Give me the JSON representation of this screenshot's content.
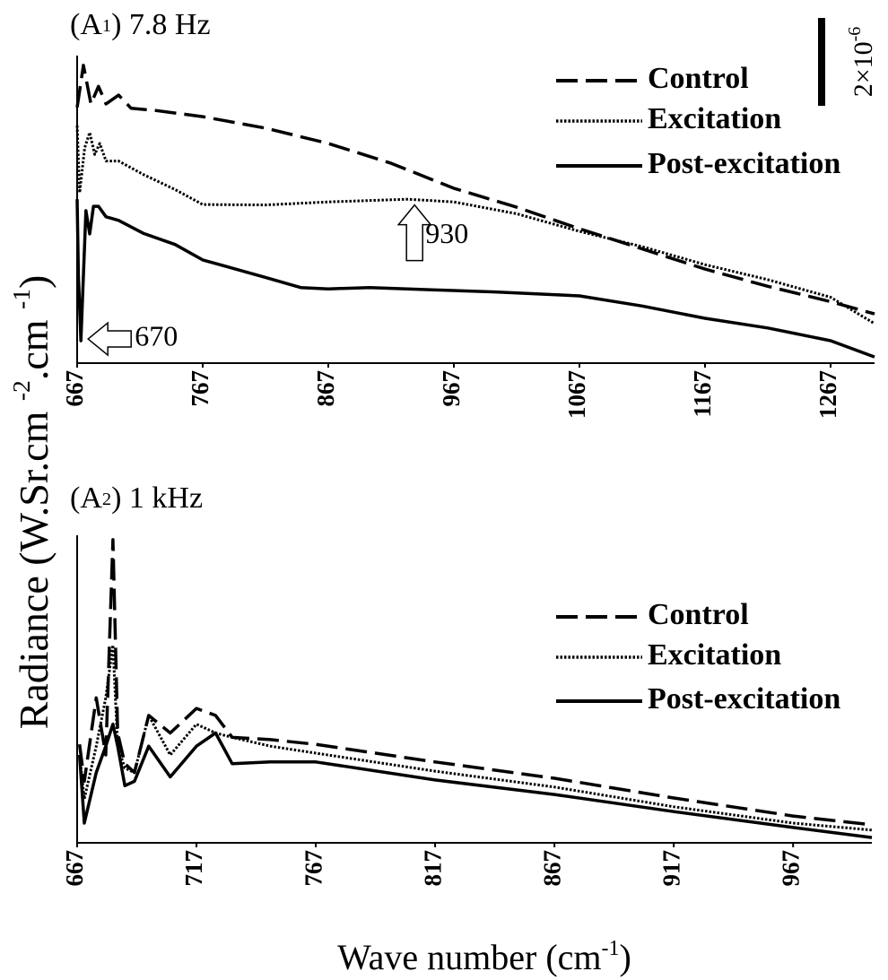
{
  "ylabel": [
    "Radiance (W.Sr.cm ",
    "-2",
    ".cm ",
    "-1",
    ")"
  ],
  "xlabel": [
    "Wave number (cm",
    "-1",
    ")"
  ],
  "scale_bar": {
    "value": 2e-06,
    "label": "2×10",
    "label_sup": "-6"
  },
  "chart_data": [
    {
      "type": "line",
      "title": [
        "(A",
        "1",
        ") 7.8 Hz"
      ],
      "xlim": [
        667,
        1302
      ],
      "xticks": [
        667,
        767,
        867,
        967,
        1067,
        1167,
        1267
      ],
      "ylim": [
        0,
        7e-06
      ],
      "legend": "upper right",
      "annotations": [
        {
          "text": "670",
          "x": 670,
          "y": 5.5e-07,
          "arrow": "left"
        },
        {
          "text": "930",
          "x": 930,
          "y": 3.6e-06,
          "arrow": "up"
        }
      ],
      "series": [
        {
          "name": "Control",
          "color": "#000000",
          "dash": "dashed",
          "x": [
            667,
            672,
            678,
            684,
            690,
            700,
            710,
            730,
            767,
            817,
            867,
            917,
            967,
            1017,
            1067,
            1117,
            1167,
            1217,
            1267,
            1302
          ],
          "values": [
            5.82e-06,
            6.78e-06,
            5.9e-06,
            6.3e-06,
            5.9e-06,
            6.1e-06,
            5.8e-06,
            5.75e-06,
            5.61e-06,
            5.35e-06,
            5e-06,
            4.55e-06,
            3.98e-06,
            3.55e-06,
            3.06e-06,
            2.6e-06,
            2.14e-06,
            1.75e-06,
            1.4e-06,
            1.12e-06
          ]
        },
        {
          "name": "Excitation",
          "color": "#000000",
          "dash": "dotted",
          "x": [
            667,
            669,
            673,
            677,
            681,
            685,
            690,
            700,
            720,
            745,
            767,
            817,
            867,
            930,
            967,
            1017,
            1067,
            1117,
            1167,
            1217,
            1267,
            1302
          ],
          "values": [
            5.41e-06,
            3.88e-06,
            4.9e-06,
            5.25e-06,
            4.75e-06,
            5e-06,
            4.6e-06,
            4.6e-06,
            4.29e-06,
            3.95e-06,
            3.61e-06,
            3.6e-06,
            3.67e-06,
            3.73e-06,
            3.67e-06,
            3.4e-06,
            3e-06,
            2.65e-06,
            2.24e-06,
            1.9e-06,
            1.5e-06,
            9e-07
          ]
        },
        {
          "name": "Post-excitation",
          "color": "#000000",
          "dash": "solid",
          "x": [
            667,
            668,
            670,
            672,
            674,
            677,
            680,
            684,
            690,
            700,
            720,
            745,
            767,
            817,
            845,
            867,
            900,
            950,
            1000,
            1067,
            1117,
            1167,
            1217,
            1267,
            1302
          ],
          "values": [
            3.73e-06,
            2e-06,
            5.1e-07,
            2e-06,
            3.47e-06,
            2.94e-06,
            3.57e-06,
            3.57e-06,
            3.33e-06,
            3.25e-06,
            2.95e-06,
            2.7e-06,
            2.35e-06,
            1.95e-06,
            1.72e-06,
            1.69e-06,
            1.72e-06,
            1.67e-06,
            1.62e-06,
            1.53e-06,
            1.3e-06,
            1.02e-06,
            8e-07,
            5.1e-07,
            1.4e-07
          ]
        }
      ]
    },
    {
      "type": "line",
      "title": [
        "(A",
        "2",
        ") 1 kHz"
      ],
      "xlim": [
        667,
        1000
      ],
      "xticks": [
        667,
        717,
        767,
        817,
        867,
        917,
        967
      ],
      "ylim": [
        0,
        7e-06
      ],
      "legend": "upper right",
      "series": [
        {
          "name": "Control",
          "color": "#000000",
          "dash": "dashed",
          "x": [
            668,
            670,
            675,
            679,
            682,
            684,
            687,
            691,
            697,
            706,
            717,
            725,
            732,
            748,
            767,
            817,
            867,
            917,
            967,
            1000
          ],
          "values": [
            2.24e-06,
            1.4e-06,
            3.3e-06,
            2e-06,
            6.9e-06,
            2.5e-06,
            1.8e-06,
            1.6e-06,
            2.9e-06,
            2.5e-06,
            3.06e-06,
            2.9e-06,
            2.4e-06,
            2.35e-06,
            2.24e-06,
            1.84e-06,
            1.47e-06,
            1.02e-06,
            6.1e-07,
            4.1e-07
          ]
        },
        {
          "name": "Excitation",
          "color": "#000000",
          "dash": "dotted",
          "x": [
            668,
            670,
            675,
            679,
            682,
            684,
            687,
            691,
            697,
            706,
            717,
            725,
            732,
            748,
            767,
            817,
            867,
            917,
            967,
            1000
          ],
          "values": [
            2e-06,
            1e-06,
            2.2e-06,
            3.3e-06,
            4.5e-06,
            2.2e-06,
            1.7e-06,
            1.6e-06,
            2.9e-06,
            2e-06,
            2.7e-06,
            2.5e-06,
            2.4e-06,
            2.2e-06,
            2.04e-06,
            1.63e-06,
            1.27e-06,
            8.2e-07,
            4.5e-07,
            2.9e-07
          ]
        },
        {
          "name": "Post-excitation",
          "color": "#000000",
          "dash": "solid",
          "x": [
            668,
            670,
            675,
            679,
            682,
            684,
            687,
            691,
            697,
            706,
            717,
            725,
            732,
            748,
            767,
            817,
            867,
            917,
            967,
            1000
          ],
          "values": [
            2e-06,
            4.5e-07,
            1.6e-06,
            2.2e-06,
            2.7e-06,
            2.2e-06,
            1.3e-06,
            1.4e-06,
            2.2e-06,
            1.5e-06,
            2.2e-06,
            2.5e-06,
            1.8e-06,
            1.84e-06,
            1.84e-06,
            1.43e-06,
            1.1e-06,
            7.1e-07,
            3.5e-07,
            1.2e-07
          ]
        }
      ]
    }
  ]
}
